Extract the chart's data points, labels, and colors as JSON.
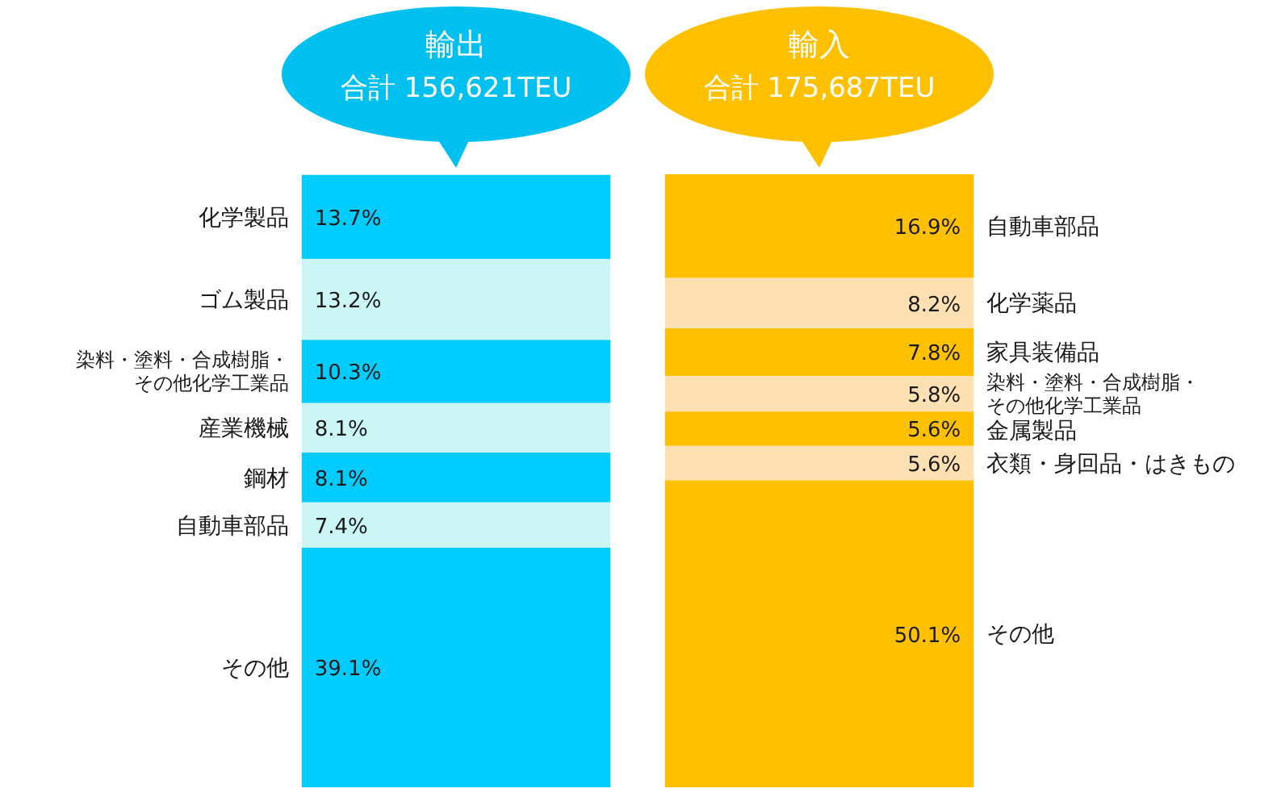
{
  "chart_data": {
    "type": "bar",
    "stacked": true,
    "categories": [
      "輸出",
      "輸入"
    ],
    "annotations": [
      "合計 156,621TEU",
      "合計 175,687TEU"
    ],
    "series": [
      {
        "name": "その他",
        "color": "#00ccff",
        "values": [
          39.1,
          null
        ],
        "value_labels": [
          "39.1%",
          null
        ]
      },
      {
        "name": "自動車部品",
        "color": "#ccf5f5",
        "values": [
          7.4,
          null
        ],
        "value_labels": [
          "7.4%",
          null
        ]
      },
      {
        "name": "鋼材",
        "color": "#00ccff",
        "values": [
          8.1,
          null
        ],
        "value_labels": [
          "8.1%",
          null
        ]
      },
      {
        "name": "産業機械",
        "color": "#ccf5f5",
        "values": [
          8.1,
          null
        ],
        "value_labels": [
          "8.1%",
          null
        ]
      },
      {
        "name": "染料・塗料・合成樹脂・その他化学工業品",
        "color": "#00ccff",
        "values": [
          10.3,
          null
        ],
        "value_labels": [
          "10.3%",
          null
        ]
      },
      {
        "name": "ゴム製品",
        "color": "#ccf5f5",
        "values": [
          13.2,
          null
        ],
        "value_labels": [
          "13.2%",
          null
        ]
      },
      {
        "name": "化学製品",
        "color": "#00ccff",
        "values": [
          13.7,
          null
        ],
        "value_labels": [
          "13.7%",
          null
        ]
      },
      {
        "name": "その他",
        "color": "#ffc000",
        "values": [
          null,
          50.1
        ],
        "value_labels": [
          null,
          "50.1%"
        ]
      },
      {
        "name": "衣類・身回品・はきもの",
        "color": "#ffe0b3",
        "values": [
          null,
          5.6
        ],
        "value_labels": [
          null,
          "5.6%"
        ]
      },
      {
        "name": "金属製品",
        "color": "#ffc000",
        "values": [
          null,
          5.6
        ],
        "value_labels": [
          null,
          "5.6%"
        ]
      },
      {
        "name": "染料・塗料・合成樹脂・その他化学工業品",
        "color": "#ffe0b3",
        "values": [
          null,
          5.8
        ],
        "value_labels": [
          null,
          "5.8%"
        ]
      },
      {
        "name": "家具装備品",
        "color": "#ffc000",
        "values": [
          null,
          7.8
        ],
        "value_labels": [
          null,
          "7.8%"
        ]
      },
      {
        "name": "化学薬品",
        "color": "#ffe0b3",
        "values": [
          null,
          8.2
        ],
        "value_labels": [
          null,
          "8.2%"
        ]
      },
      {
        "name": "自動車部品",
        "color": "#ffc000",
        "values": [
          null,
          16.9
        ],
        "value_labels": [
          null,
          "16.9%"
        ]
      }
    ]
  }
}
